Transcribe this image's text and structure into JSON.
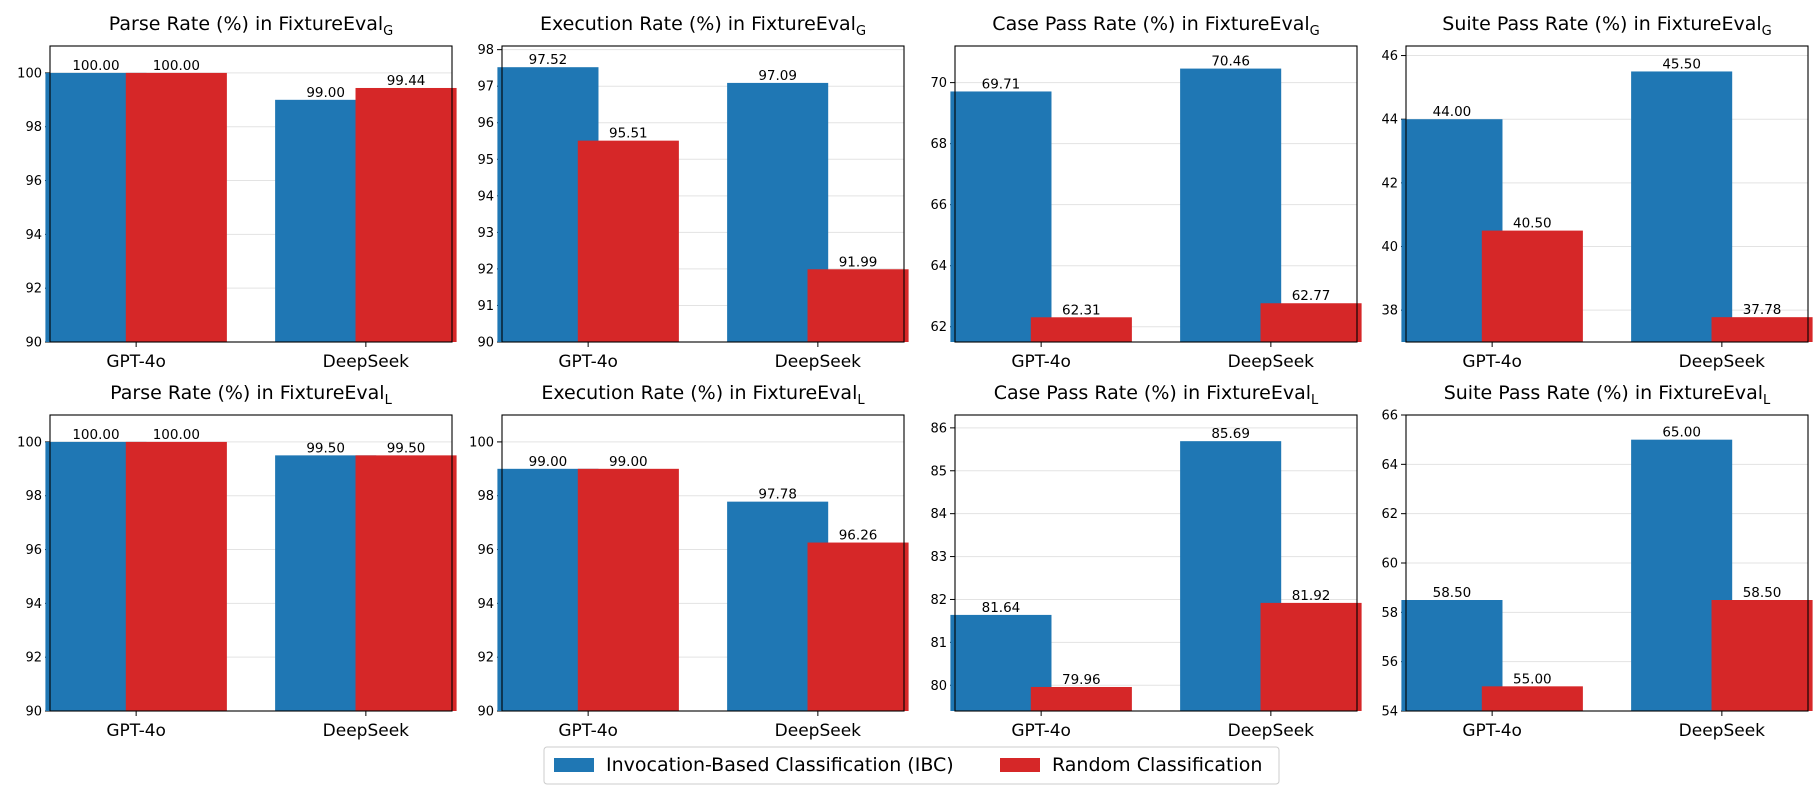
{
  "colors": {
    "ibc": "#1f77b4",
    "random": "#d62728"
  },
  "legend": {
    "items": [
      {
        "label": "Invocation-Based Classification (IBC)",
        "color": "#1f77b4"
      },
      {
        "label": "Random Classification",
        "color": "#d62728"
      }
    ]
  },
  "chart_data": [
    {
      "type": "bar",
      "title": "Parse Rate (%) in FixtureEval",
      "subscript": "G",
      "categories": [
        "GPT-4o",
        "DeepSeek"
      ],
      "series": [
        {
          "name": "Invocation-Based Classification (IBC)",
          "values": [
            100.0,
            99.0
          ]
        },
        {
          "name": "Random Classification",
          "values": [
            100.0,
            99.44
          ]
        }
      ],
      "ylim": [
        90,
        101
      ],
      "yticks": [
        90,
        92,
        94,
        96,
        98,
        100
      ],
      "grid": true
    },
    {
      "type": "bar",
      "title": "Execution Rate (%) in FixtureEval",
      "subscript": "G",
      "categories": [
        "GPT-4o",
        "DeepSeek"
      ],
      "series": [
        {
          "name": "Invocation-Based Classification (IBC)",
          "values": [
            97.52,
            97.09
          ]
        },
        {
          "name": "Random Classification",
          "values": [
            95.51,
            91.99
          ]
        }
      ],
      "ylim": [
        90,
        98.1
      ],
      "yticks": [
        90,
        91,
        92,
        93,
        94,
        95,
        96,
        97,
        98
      ],
      "grid": true
    },
    {
      "type": "bar",
      "title": "Case Pass Rate (%) in FixtureEval",
      "subscript": "G",
      "categories": [
        "GPT-4o",
        "DeepSeek"
      ],
      "series": [
        {
          "name": "Invocation-Based Classification (IBC)",
          "values": [
            69.71,
            70.46
          ]
        },
        {
          "name": "Random Classification",
          "values": [
            62.31,
            62.77
          ]
        }
      ],
      "ylim": [
        61.5,
        71.2
      ],
      "yticks": [
        62,
        64,
        66,
        68,
        70
      ],
      "grid": true
    },
    {
      "type": "bar",
      "title": "Suite Pass Rate (%) in FixtureEval",
      "subscript": "G",
      "categories": [
        "GPT-4o",
        "DeepSeek"
      ],
      "series": [
        {
          "name": "Invocation-Based Classification (IBC)",
          "values": [
            44.0,
            45.5
          ]
        },
        {
          "name": "Random Classification",
          "values": [
            40.5,
            37.78
          ]
        }
      ],
      "ylim": [
        37,
        46.3
      ],
      "yticks": [
        38,
        40,
        42,
        44,
        46
      ],
      "grid": true
    },
    {
      "type": "bar",
      "title": "Parse Rate (%) in FixtureEval",
      "subscript": "L",
      "categories": [
        "GPT-4o",
        "DeepSeek"
      ],
      "series": [
        {
          "name": "Invocation-Based Classification (IBC)",
          "values": [
            100.0,
            99.5
          ]
        },
        {
          "name": "Random Classification",
          "values": [
            100.0,
            99.5
          ]
        }
      ],
      "ylim": [
        90,
        101
      ],
      "yticks": [
        90,
        92,
        94,
        96,
        98,
        100
      ],
      "grid": true
    },
    {
      "type": "bar",
      "title": "Execution Rate (%) in FixtureEval",
      "subscript": "L",
      "categories": [
        "GPT-4o",
        "DeepSeek"
      ],
      "series": [
        {
          "name": "Invocation-Based Classification (IBC)",
          "values": [
            99.0,
            97.78
          ]
        },
        {
          "name": "Random Classification",
          "values": [
            99.0,
            96.26
          ]
        }
      ],
      "ylim": [
        90,
        101
      ],
      "yticks": [
        90,
        92,
        94,
        96,
        98,
        100
      ],
      "grid": true
    },
    {
      "type": "bar",
      "title": "Case Pass Rate (%) in FixtureEval",
      "subscript": "L",
      "categories": [
        "GPT-4o",
        "DeepSeek"
      ],
      "series": [
        {
          "name": "Invocation-Based Classification (IBC)",
          "values": [
            81.64,
            85.69
          ]
        },
        {
          "name": "Random Classification",
          "values": [
            79.96,
            81.92
          ]
        }
      ],
      "ylim": [
        79.4,
        86.3
      ],
      "yticks": [
        80,
        81,
        82,
        83,
        84,
        85,
        86
      ],
      "grid": true
    },
    {
      "type": "bar",
      "title": "Suite Pass Rate (%) in FixtureEval",
      "subscript": "L",
      "categories": [
        "GPT-4o",
        "DeepSeek"
      ],
      "series": [
        {
          "name": "Invocation-Based Classification (IBC)",
          "values": [
            58.5,
            65.0
          ]
        },
        {
          "name": "Random Classification",
          "values": [
            55.0,
            58.5
          ]
        }
      ],
      "ylim": [
        54,
        66
      ],
      "yticks": [
        54,
        56,
        58,
        60,
        62,
        64,
        66
      ],
      "grid": true
    }
  ]
}
